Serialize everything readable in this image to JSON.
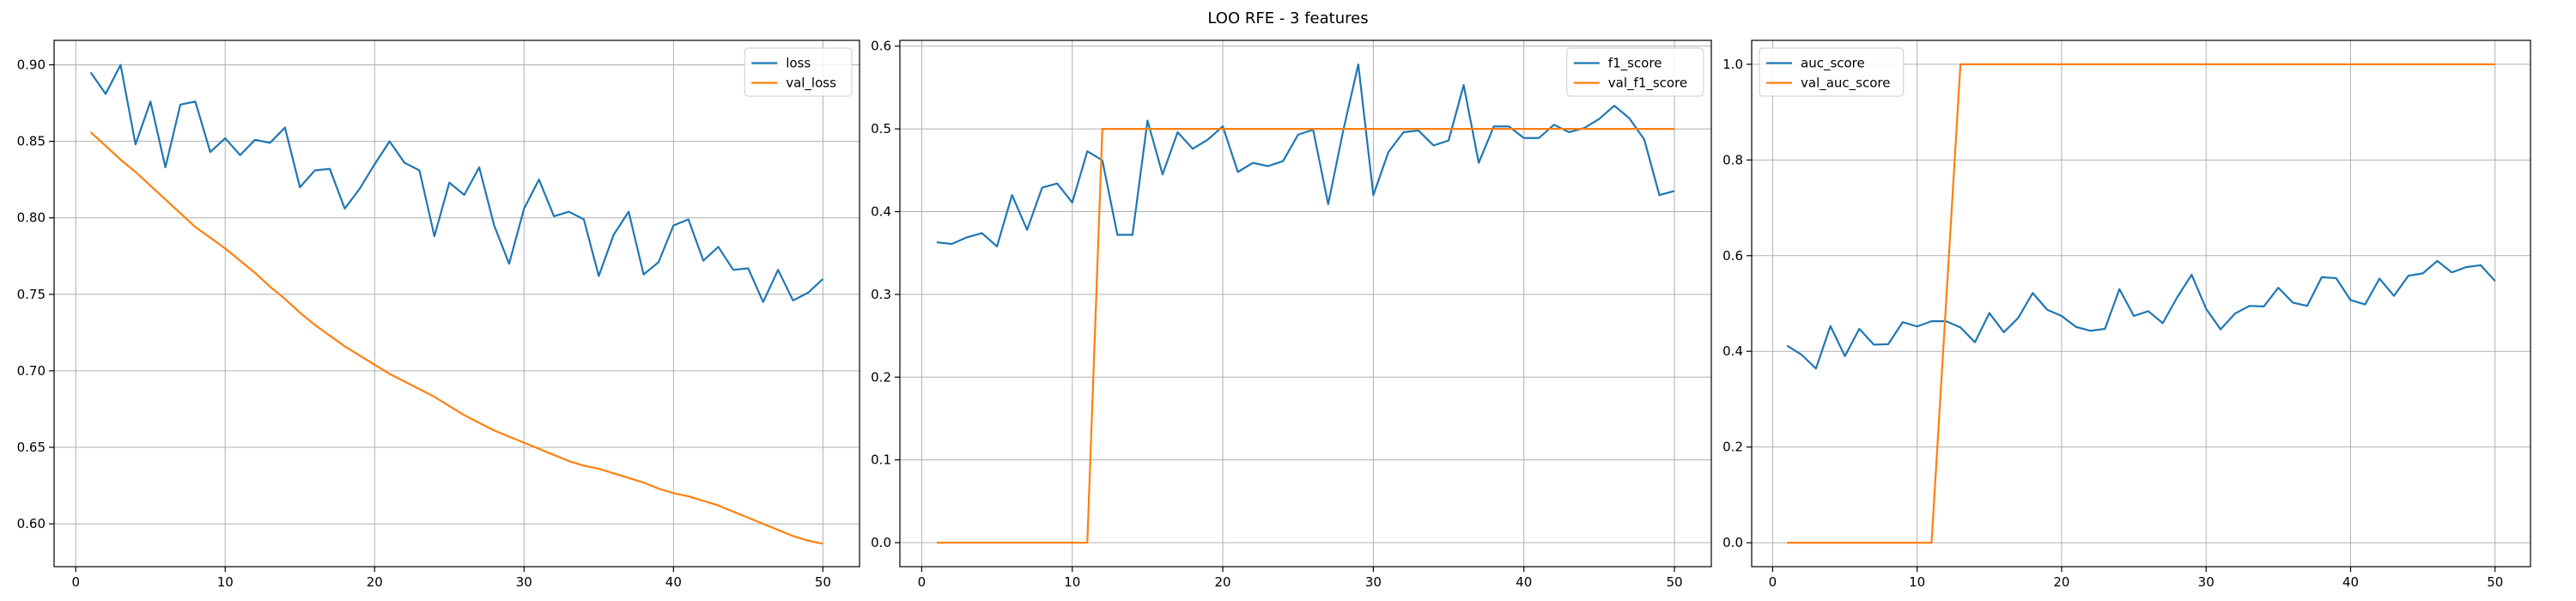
{
  "figure_title": "LOO RFE - 3 features",
  "colors": {
    "series1": "#1f77b4",
    "series2": "#ff7f0e",
    "grid": "#b0b0b0",
    "axis": "#000000"
  },
  "chart_data": [
    {
      "type": "line",
      "legend": "top-right",
      "grid": true,
      "xlim": [
        -1.45,
        52.45
      ],
      "ylim": [
        0.572,
        0.916
      ],
      "xticks": [
        0,
        10,
        20,
        30,
        40,
        50
      ],
      "yticks": [
        0.6,
        0.65,
        0.7,
        0.75,
        0.8,
        0.85,
        0.9
      ],
      "ytick_decimals": 2,
      "series": [
        {
          "name": "loss",
          "x": [
            1,
            2,
            3,
            4,
            5,
            6,
            7,
            8,
            9,
            10,
            11,
            12,
            13,
            14,
            15,
            16,
            17,
            18,
            19,
            20,
            21,
            22,
            23,
            24,
            25,
            26,
            27,
            28,
            29,
            30,
            31,
            32,
            33,
            34,
            35,
            36,
            37,
            38,
            39,
            40,
            41,
            42,
            43,
            44,
            45,
            46,
            47,
            48,
            49,
            50
          ],
          "y": [
            0.895,
            0.881,
            0.9,
            0.848,
            0.876,
            0.833,
            0.874,
            0.876,
            0.843,
            0.852,
            0.841,
            0.851,
            0.849,
            0.859,
            0.82,
            0.831,
            0.832,
            0.806,
            0.819,
            0.835,
            0.85,
            0.836,
            0.831,
            0.788,
            0.823,
            0.815,
            0.833,
            0.795,
            0.77,
            0.806,
            0.825,
            0.801,
            0.804,
            0.799,
            0.762,
            0.789,
            0.804,
            0.763,
            0.771,
            0.795,
            0.799,
            0.772,
            0.781,
            0.766,
            0.767,
            0.745,
            0.766,
            0.746,
            0.751,
            0.76
          ]
        },
        {
          "name": "val_loss",
          "x": [
            1,
            2,
            3,
            4,
            5,
            6,
            7,
            8,
            9,
            10,
            11,
            12,
            13,
            14,
            15,
            16,
            17,
            18,
            19,
            20,
            21,
            22,
            23,
            24,
            25,
            26,
            27,
            28,
            29,
            30,
            31,
            32,
            33,
            34,
            35,
            36,
            37,
            38,
            39,
            40,
            41,
            42,
            43,
            44,
            45,
            46,
            47,
            48,
            49,
            50
          ],
          "y": [
            0.856,
            0.847,
            0.838,
            0.83,
            0.821,
            0.812,
            0.803,
            0.794,
            0.787,
            0.78,
            0.772,
            0.764,
            0.755,
            0.747,
            0.738,
            0.73,
            0.723,
            0.716,
            0.71,
            0.704,
            0.698,
            0.693,
            0.688,
            0.683,
            0.677,
            0.671,
            0.666,
            0.661,
            0.657,
            0.653,
            0.649,
            0.645,
            0.641,
            0.638,
            0.636,
            0.633,
            0.63,
            0.627,
            0.623,
            0.62,
            0.618,
            0.615,
            0.612,
            0.608,
            0.604,
            0.6,
            0.596,
            0.592,
            0.589,
            0.587
          ]
        }
      ]
    },
    {
      "type": "line",
      "legend": "top-right",
      "grid": true,
      "xlim": [
        -1.45,
        52.45
      ],
      "ylim": [
        -0.029,
        0.607
      ],
      "xticks": [
        0,
        10,
        20,
        30,
        40,
        50
      ],
      "yticks": [
        0.0,
        0.1,
        0.2,
        0.3,
        0.4,
        0.5,
        0.6
      ],
      "ytick_decimals": 1,
      "series": [
        {
          "name": "f1_score",
          "x": [
            1,
            2,
            3,
            4,
            5,
            6,
            7,
            8,
            9,
            10,
            11,
            12,
            13,
            14,
            15,
            16,
            17,
            18,
            19,
            20,
            21,
            22,
            23,
            24,
            25,
            26,
            27,
            28,
            29,
            30,
            31,
            32,
            33,
            34,
            35,
            36,
            37,
            38,
            39,
            40,
            41,
            42,
            43,
            44,
            45,
            46,
            47,
            48,
            49,
            50
          ],
          "y": [
            0.363,
            0.361,
            0.369,
            0.374,
            0.358,
            0.42,
            0.378,
            0.429,
            0.434,
            0.411,
            0.473,
            0.462,
            0.372,
            0.372,
            0.51,
            0.445,
            0.496,
            0.476,
            0.487,
            0.503,
            0.448,
            0.459,
            0.455,
            0.461,
            0.493,
            0.499,
            0.409,
            0.498,
            0.578,
            0.42,
            0.472,
            0.496,
            0.498,
            0.48,
            0.486,
            0.553,
            0.459,
            0.503,
            0.503,
            0.489,
            0.489,
            0.505,
            0.496,
            0.501,
            0.512,
            0.528,
            0.513,
            0.487,
            0.42,
            0.425
          ]
        },
        {
          "name": "val_f1_score",
          "x": [
            1,
            2,
            3,
            4,
            5,
            6,
            7,
            8,
            9,
            10,
            11,
            12,
            13,
            14,
            15,
            16,
            17,
            18,
            19,
            20,
            21,
            22,
            23,
            24,
            25,
            26,
            27,
            28,
            29,
            30,
            31,
            32,
            33,
            34,
            35,
            36,
            37,
            38,
            39,
            40,
            41,
            42,
            43,
            44,
            45,
            46,
            47,
            48,
            49,
            50
          ],
          "y": [
            0,
            0,
            0,
            0,
            0,
            0,
            0,
            0,
            0,
            0,
            0,
            0.5,
            0.5,
            0.5,
            0.5,
            0.5,
            0.5,
            0.5,
            0.5,
            0.5,
            0.5,
            0.5,
            0.5,
            0.5,
            0.5,
            0.5,
            0.5,
            0.5,
            0.5,
            0.5,
            0.5,
            0.5,
            0.5,
            0.5,
            0.5,
            0.5,
            0.5,
            0.5,
            0.5,
            0.5,
            0.5,
            0.5,
            0.5,
            0.5,
            0.5,
            0.5,
            0.5,
            0.5,
            0.5,
            0.5
          ]
        }
      ]
    },
    {
      "type": "line",
      "legend": "top-left",
      "grid": true,
      "xlim": [
        -1.45,
        52.45
      ],
      "ylim": [
        -0.05,
        1.05
      ],
      "xticks": [
        0,
        10,
        20,
        30,
        40,
        50
      ],
      "yticks": [
        0.0,
        0.2,
        0.4,
        0.6,
        0.8,
        1.0
      ],
      "ytick_decimals": 1,
      "series": [
        {
          "name": "auc_score",
          "x": [
            1,
            2,
            3,
            4,
            5,
            6,
            7,
            8,
            9,
            10,
            11,
            12,
            13,
            14,
            15,
            16,
            17,
            18,
            19,
            20,
            21,
            22,
            23,
            24,
            25,
            26,
            27,
            28,
            29,
            30,
            31,
            32,
            33,
            34,
            35,
            36,
            37,
            38,
            39,
            40,
            41,
            42,
            43,
            44,
            45,
            46,
            47,
            48,
            49,
            50
          ],
          "y": [
            0.412,
            0.393,
            0.364,
            0.453,
            0.39,
            0.447,
            0.414,
            0.415,
            0.461,
            0.452,
            0.463,
            0.463,
            0.45,
            0.419,
            0.48,
            0.44,
            0.47,
            0.522,
            0.487,
            0.474,
            0.451,
            0.443,
            0.447,
            0.53,
            0.474,
            0.484,
            0.459,
            0.513,
            0.56,
            0.489,
            0.446,
            0.479,
            0.495,
            0.494,
            0.533,
            0.502,
            0.495,
            0.555,
            0.553,
            0.507,
            0.498,
            0.552,
            0.516,
            0.558,
            0.563,
            0.589,
            0.565,
            0.576,
            0.58,
            0.547
          ]
        },
        {
          "name": "val_auc_score",
          "x": [
            1,
            2,
            3,
            4,
            5,
            6,
            7,
            8,
            9,
            10,
            11,
            12,
            13,
            14,
            15,
            16,
            17,
            18,
            19,
            20,
            21,
            22,
            23,
            24,
            25,
            26,
            27,
            28,
            29,
            30,
            31,
            32,
            33,
            34,
            35,
            36,
            37,
            38,
            39,
            40,
            41,
            42,
            43,
            44,
            45,
            46,
            47,
            48,
            49,
            50
          ],
          "y": [
            0,
            0,
            0,
            0,
            0,
            0,
            0,
            0,
            0,
            0,
            0,
            0.5,
            1,
            1,
            1,
            1,
            1,
            1,
            1,
            1,
            1,
            1,
            1,
            1,
            1,
            1,
            1,
            1,
            1,
            1,
            1,
            1,
            1,
            1,
            1,
            1,
            1,
            1,
            1,
            1,
            1,
            1,
            1,
            1,
            1,
            1,
            1,
            1,
            1,
            1
          ]
        }
      ]
    }
  ]
}
